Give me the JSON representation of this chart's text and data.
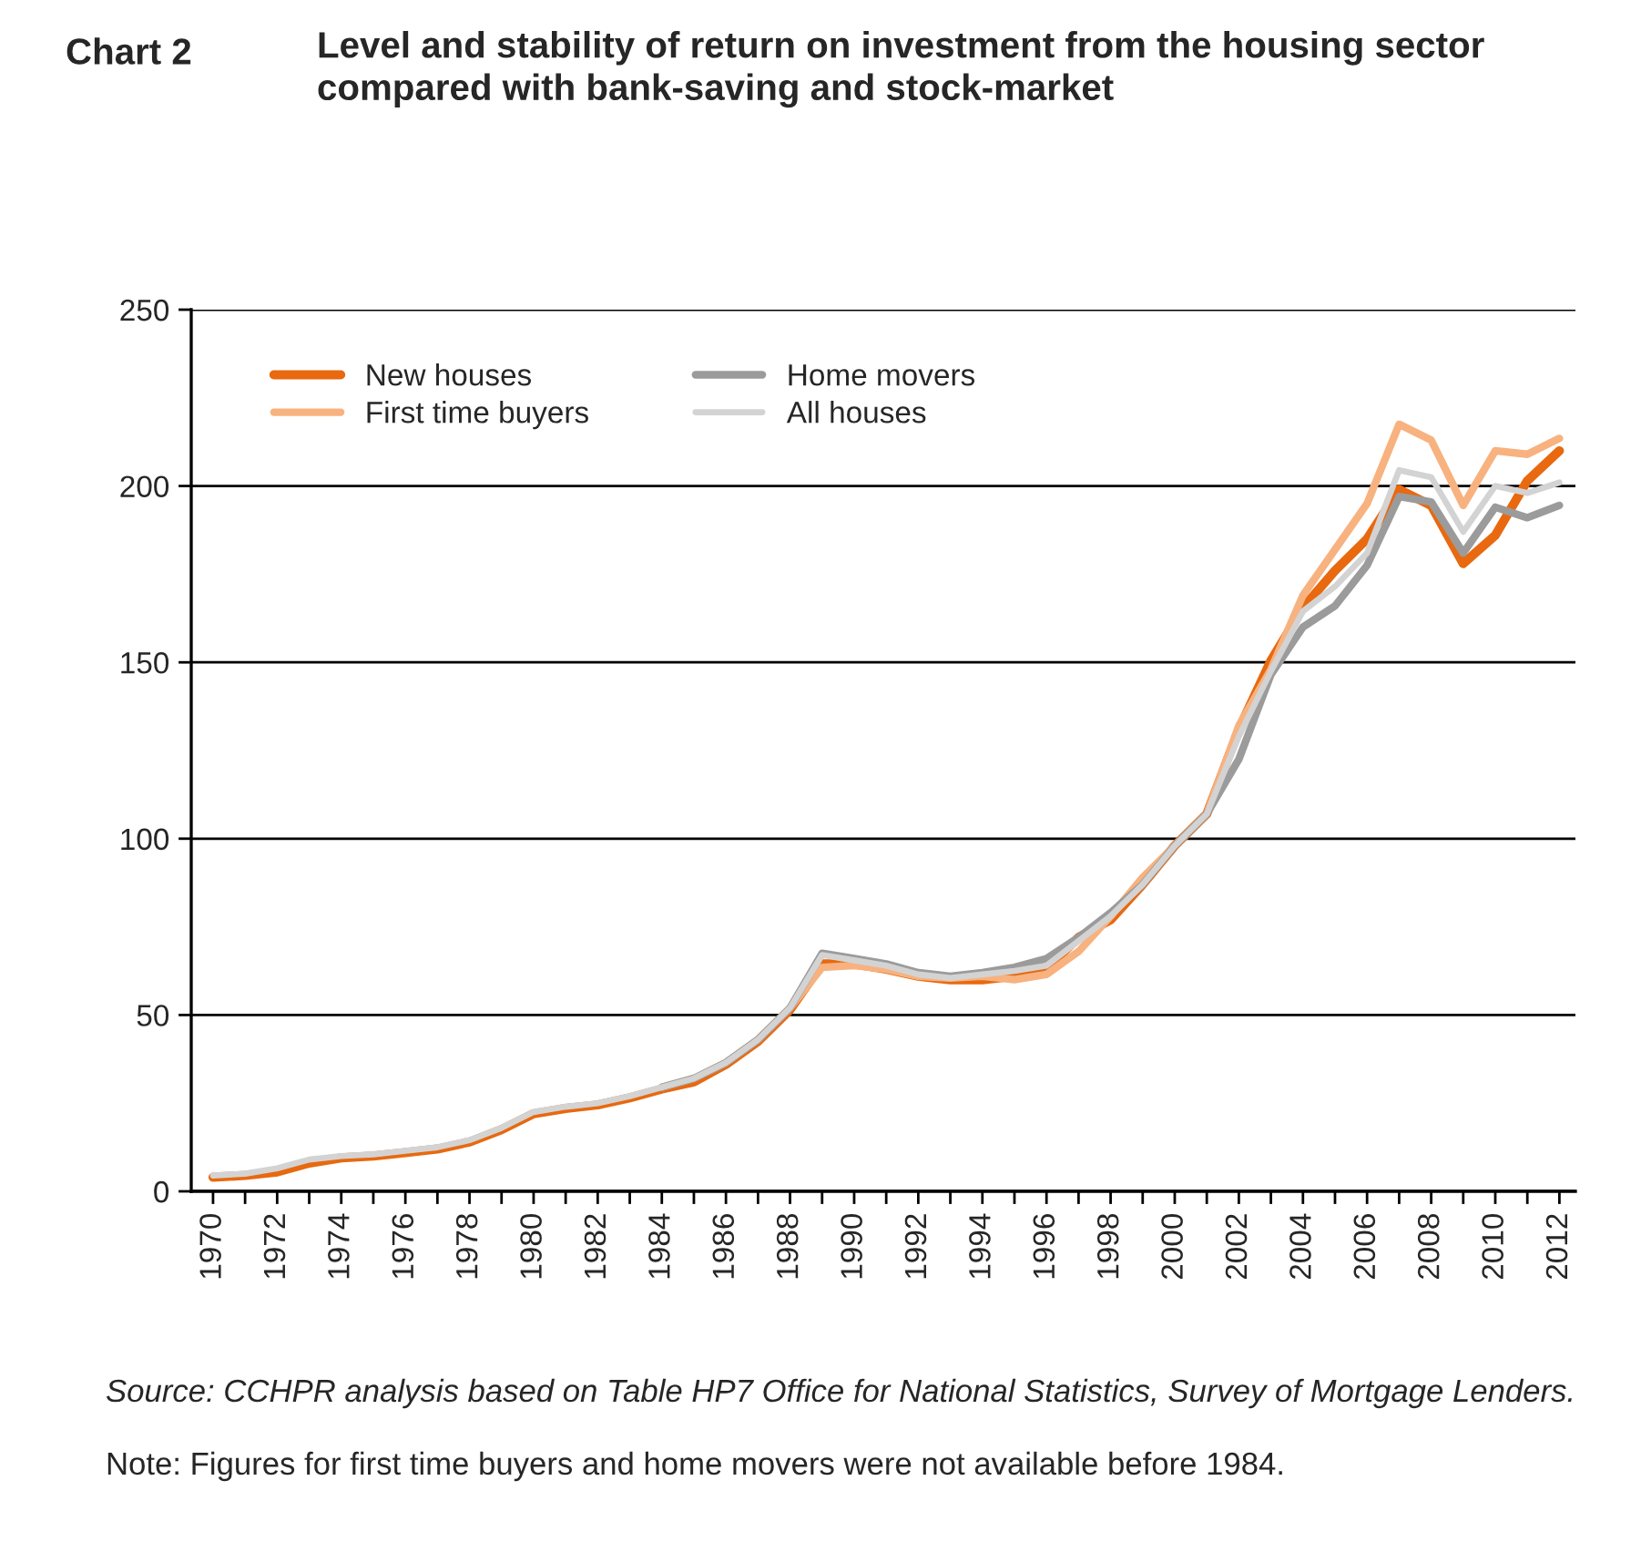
{
  "chart_data": {
    "type": "line",
    "title": "Chart 2",
    "subtitle": "Level and stability of return on investment from the housing sector\ncompared with bank-saving and stock-market",
    "categories": [
      "1970",
      null,
      "1972",
      null,
      "1974",
      null,
      "1976",
      null,
      "1978",
      null,
      "1980",
      null,
      "1982",
      null,
      "1984",
      null,
      "1986",
      null,
      "1988",
      null,
      "1990",
      null,
      "1992",
      null,
      "1994",
      null,
      "1996",
      null,
      "1998",
      null,
      "2000",
      null,
      "2002",
      null,
      "2004",
      null,
      "2006",
      null,
      "2008",
      null,
      "2010",
      null,
      "2012"
    ],
    "series": [
      {
        "name": "New houses",
        "color": "#e8690f",
        "values": [
          4,
          4.5,
          5.5,
          8,
          9.5,
          10,
          11,
          12,
          14,
          17.5,
          22,
          23.5,
          24.5,
          26.5,
          29,
          31,
          36,
          42.5,
          51.5,
          64.5,
          64.5,
          63,
          61,
          60,
          60,
          61,
          63,
          72,
          77,
          87,
          98,
          107,
          131,
          150.5,
          165.5,
          176,
          185,
          199,
          194.5,
          178,
          186,
          201.5,
          210
        ]
      },
      {
        "name": "First time buyers",
        "color": "#f7b27f",
        "values": [
          null,
          null,
          null,
          null,
          null,
          null,
          null,
          null,
          null,
          null,
          null,
          null,
          null,
          null,
          29.5,
          32,
          36.5,
          43,
          52,
          63.5,
          64,
          63,
          61,
          60.5,
          61,
          60,
          61.5,
          68,
          78,
          89,
          98,
          107,
          132,
          148,
          169,
          182,
          195,
          217.5,
          213,
          194.5,
          210,
          209,
          213.5
        ]
      },
      {
        "name": "Home movers",
        "color": "#9b9b9b",
        "values": [
          null,
          null,
          null,
          null,
          null,
          null,
          null,
          null,
          null,
          null,
          null,
          null,
          null,
          null,
          29.5,
          32,
          36.5,
          43,
          52,
          67.5,
          66,
          64.5,
          62,
          61,
          62,
          63.5,
          66,
          72,
          79,
          87,
          98,
          107,
          122.5,
          146.5,
          160,
          166,
          177.5,
          197,
          195.5,
          181,
          194,
          191,
          194.5
        ]
      },
      {
        "name": "All houses",
        "color": "#d3d3d3",
        "values": [
          4.5,
          5,
          6.5,
          9,
          10,
          10.5,
          11.5,
          12.5,
          14.5,
          18,
          22.5,
          24,
          25,
          27,
          29.5,
          32,
          36.5,
          43,
          52,
          67,
          65.5,
          64,
          61.5,
          60.5,
          61.5,
          62.5,
          64,
          71,
          78,
          87,
          98,
          107,
          129,
          147.5,
          164.5,
          171.5,
          181,
          204.5,
          202.5,
          187,
          200,
          198,
          201
        ]
      }
    ],
    "ylim": [
      0,
      250
    ],
    "yticks": [
      0,
      50,
      100,
      150,
      200,
      250
    ],
    "grid": "y",
    "legend": "top left",
    "line_style": "solid",
    "marker": "none",
    "annotations": [
      "Source: CCHPR analysis based on Table HP7 Office for National Statistics, Survey of Mortgage Lenders.",
      "Note: Figures for first time buyers and home movers were not available before 1984."
    ]
  }
}
